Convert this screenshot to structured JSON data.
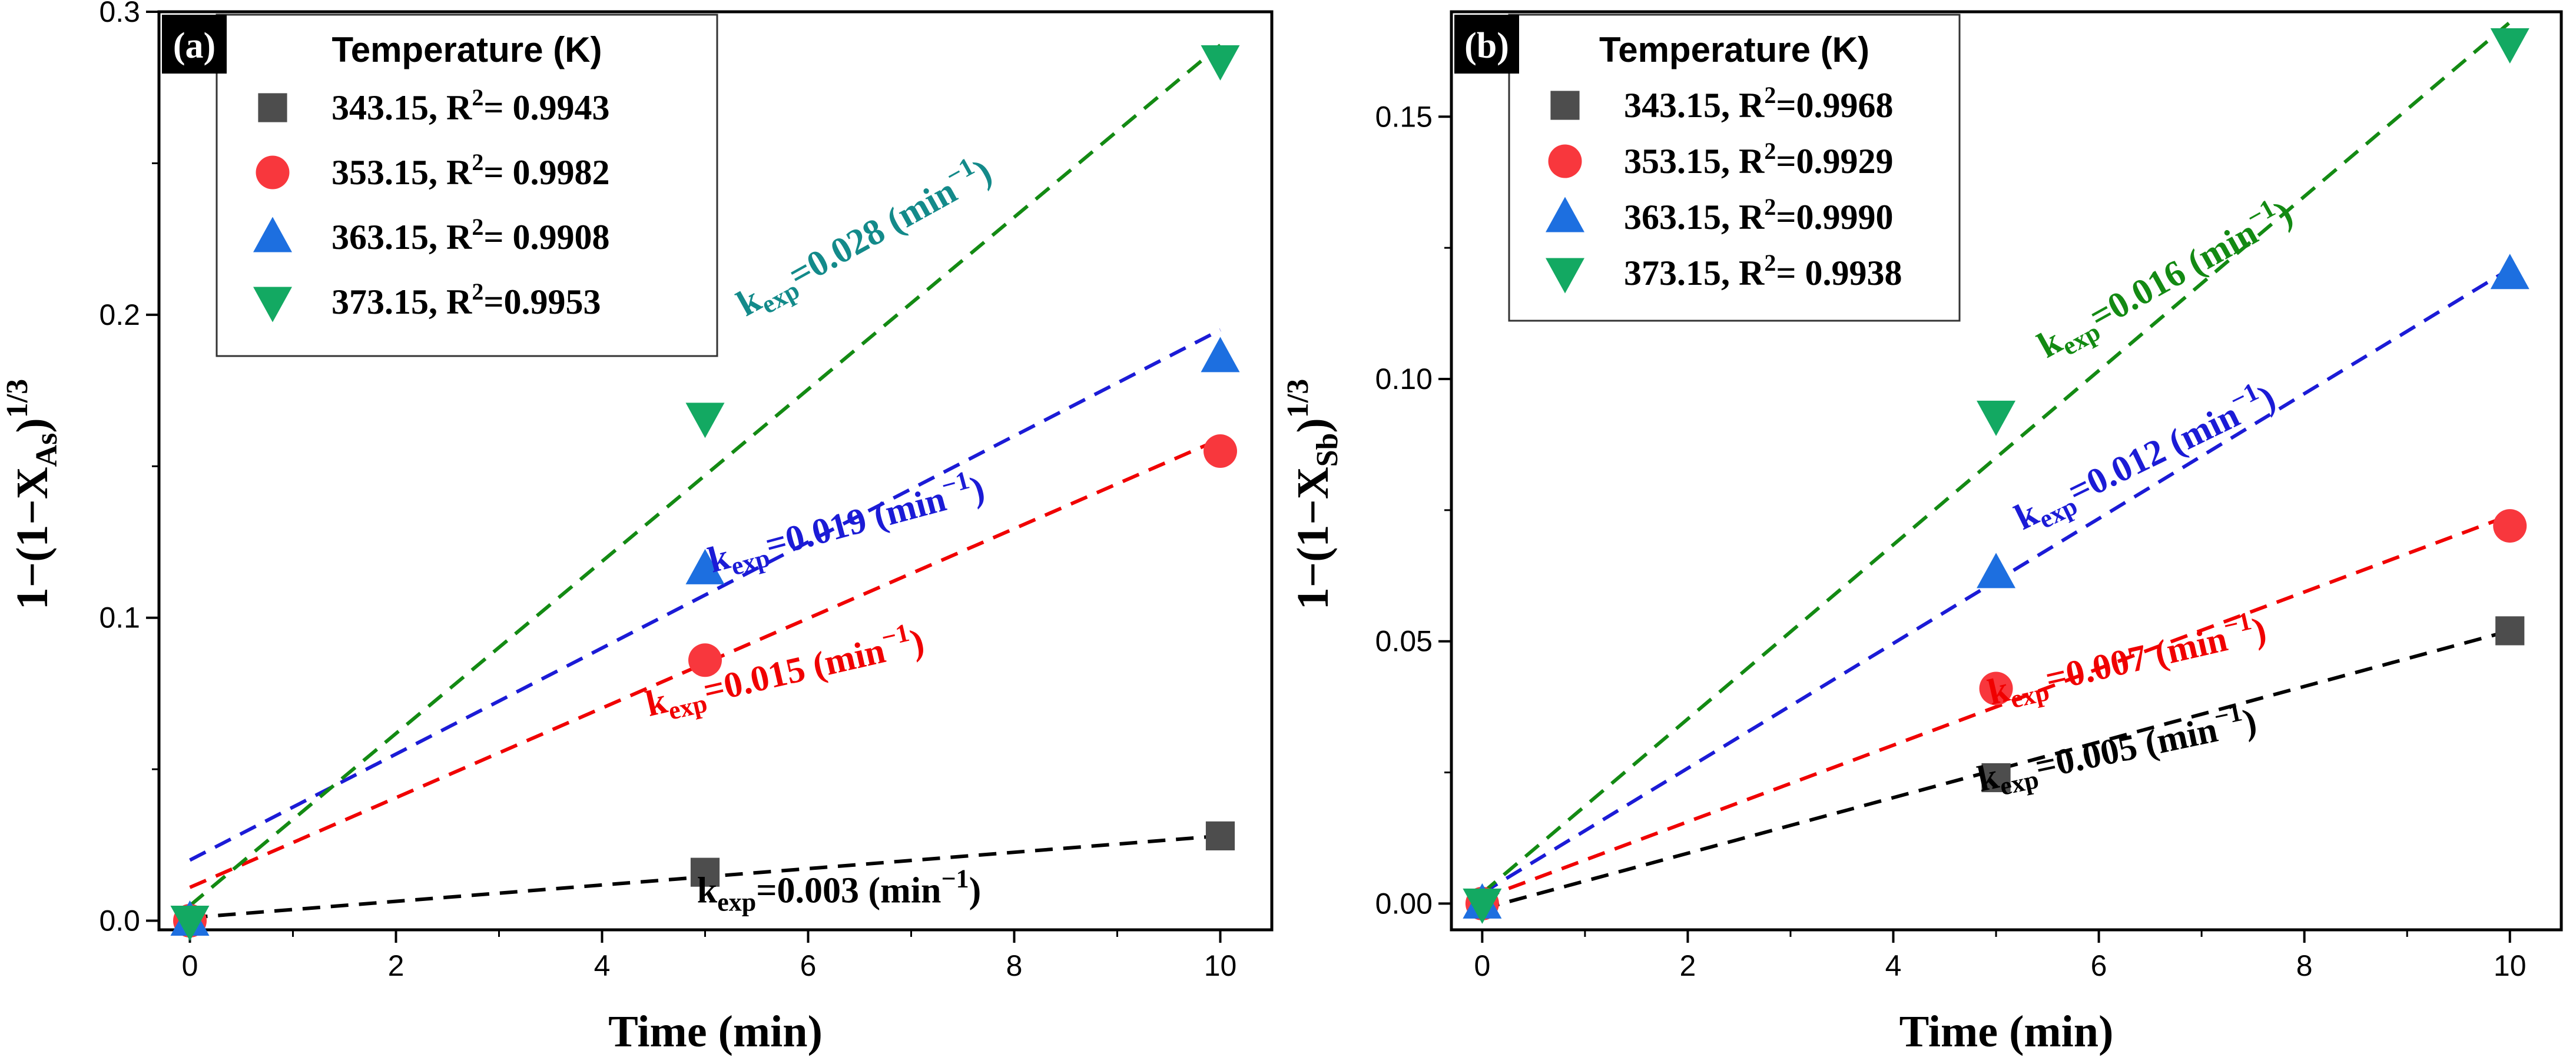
{
  "chart_data": [
    {
      "type": "scatter",
      "panel_label": "(a)",
      "xlabel": "Time (min)",
      "ylabel": {
        "prefix": "1−(1−X",
        "sub": "As",
        "mid": ")",
        "sup": "1/3"
      },
      "xlim": [
        -0.3,
        10.5
      ],
      "ylim": [
        -0.003,
        0.3
      ],
      "xticks": [
        0,
        2,
        4,
        6,
        8,
        10
      ],
      "xtick_labels": [
        "0",
        "2",
        "4",
        "6",
        "8",
        "10"
      ],
      "yticks": [
        0.0,
        0.1,
        0.2,
        0.3
      ],
      "ytick_labels": [
        "0.0",
        "0.1",
        "0.2",
        "0.3"
      ],
      "legend": {
        "title": "Temperature (K)",
        "position": "top-left",
        "entries": [
          {
            "pre": "343.15, R",
            "sup": "2",
            "post": "= 0.9943"
          },
          {
            "pre": "353.15, R",
            "sup": "2",
            "post": "= 0.9982"
          },
          {
            "pre": "363.15, R",
            "sup": "2",
            "post": "= 0.9908"
          },
          {
            "pre": "373.15, R",
            "sup": "2",
            "post": "=0.9953"
          }
        ]
      },
      "series": [
        {
          "name": "343.15",
          "marker": "square",
          "color": "#4d4d4d",
          "line_color": "#000000",
          "x": [
            0,
            5,
            10
          ],
          "y": [
            0.0,
            0.016,
            0.028
          ],
          "fit": [
            0.001,
            0.028
          ]
        },
        {
          "name": "353.15",
          "marker": "circle",
          "color": "#f8373d",
          "line_color": "#f00000",
          "x": [
            0,
            5,
            10
          ],
          "y": [
            0.0,
            0.086,
            0.155
          ],
          "fit": [
            0.011,
            0.159
          ]
        },
        {
          "name": "363.15",
          "marker": "triangle-up",
          "color": "#1d6fe0",
          "line_color": "#1b1bd6",
          "x": [
            0,
            5,
            10
          ],
          "y": [
            0.0,
            0.116,
            0.186
          ],
          "fit": [
            0.02,
            0.195
          ]
        },
        {
          "name": "373.15",
          "marker": "triangle-down",
          "color": "#13a962",
          "line_color": "#138a13",
          "x": [
            0,
            5,
            10
          ],
          "y": [
            0.0,
            0.166,
            0.284
          ],
          "fit": [
            0.005,
            0.289
          ]
        }
      ],
      "annotations": [
        {
          "pre": "k",
          "sub": "exp",
          "value": "=0.028 (min",
          "sup": "−1",
          "post": ")",
          "color": "#138a8a",
          "x": 6.6,
          "y": 0.222,
          "angle": -29
        },
        {
          "pre": "k",
          "sub": "exp",
          "value": "=0.019 (min",
          "sup": "−1",
          "post": ")",
          "color": "#1b1bd6",
          "x": 6.4,
          "y": 0.127,
          "angle": -15
        },
        {
          "pre": "k",
          "sub": "exp",
          "value": "=0.015 (min",
          "sup": "−1",
          "post": ")",
          "color": "#f00000",
          "x": 5.8,
          "y": 0.078,
          "angle": -13
        },
        {
          "pre": "k",
          "sub": "exp",
          "value": "=0.003 (min",
          "sup": "−1",
          "post": ")",
          "color": "#000000",
          "x": 6.3,
          "y": 0.006,
          "angle": 0
        }
      ]
    },
    {
      "type": "scatter",
      "panel_label": "(b)",
      "xlabel": "Time (min)",
      "ylabel": {
        "prefix": "1−(1−X",
        "sub": "Sb",
        "mid": ")",
        "sup": "1/3"
      },
      "xlim": [
        -0.3,
        10.5
      ],
      "ylim": [
        -0.005,
        0.17
      ],
      "xticks": [
        0,
        2,
        4,
        6,
        8,
        10
      ],
      "xtick_labels": [
        "0",
        "2",
        "4",
        "6",
        "8",
        "10"
      ],
      "yticks": [
        0.0,
        0.05,
        0.1,
        0.15
      ],
      "ytick_labels": [
        "0.00",
        "0.05",
        "0.10",
        "0.15"
      ],
      "legend": {
        "title": "Temperature (K)",
        "position": "top-left",
        "entries": [
          {
            "pre": "343.15, R",
            "sup": "2",
            "post": "=0.9968"
          },
          {
            "pre": "353.15, R",
            "sup": "2",
            "post": "=0.9929"
          },
          {
            "pre": "363.15, R",
            "sup": "2",
            "post": "=0.9990"
          },
          {
            "pre": "373.15, R",
            "sup": "2",
            "post": "= 0.9938"
          }
        ]
      },
      "series": [
        {
          "name": "343.15",
          "marker": "square",
          "color": "#4d4d4d",
          "line_color": "#000000",
          "x": [
            0,
            5,
            10
          ],
          "y": [
            0.0,
            0.024,
            0.052
          ],
          "fit": [
            -0.001,
            0.052
          ]
        },
        {
          "name": "353.15",
          "marker": "circle",
          "color": "#f8373d",
          "line_color": "#f00000",
          "x": [
            0,
            5,
            10
          ],
          "y": [
            0.0,
            0.041,
            0.072
          ],
          "fit": [
            0.001,
            0.074
          ]
        },
        {
          "name": "363.15",
          "marker": "triangle-up",
          "color": "#1d6fe0",
          "line_color": "#1b1bd6",
          "x": [
            0,
            5,
            10
          ],
          "y": [
            0.0,
            0.063,
            0.12
          ],
          "fit": [
            0.002,
            0.121
          ]
        },
        {
          "name": "373.15",
          "marker": "triangle-down",
          "color": "#13a962",
          "line_color": "#138a13",
          "x": [
            0,
            5,
            10
          ],
          "y": [
            0.0,
            0.093,
            0.164
          ],
          "fit": [
            0.002,
            0.168
          ]
        }
      ],
      "annotations": [
        {
          "pre": "k",
          "sub": "exp",
          "value": "=0.016 (min",
          "sup": "−1",
          "post": ")",
          "color": "#138a13",
          "x": 6.7,
          "y": 0.117,
          "angle": -29
        },
        {
          "pre": "k",
          "sub": "exp",
          "value": "=0.012 (min",
          "sup": "−1",
          "post": ")",
          "color": "#1b1bd6",
          "x": 6.5,
          "y": 0.083,
          "angle": -26
        },
        {
          "pre": "k",
          "sub": "exp",
          "value": "=0.007 (min",
          "sup": "−1",
          "post": ")",
          "color": "#f00000",
          "x": 6.3,
          "y": 0.044,
          "angle": -13
        },
        {
          "pre": "k",
          "sub": "exp",
          "value": "=0.005 (min",
          "sup": "−1",
          "post": ")",
          "color": "#000000",
          "x": 6.2,
          "y": 0.027,
          "angle": -12
        }
      ]
    }
  ]
}
